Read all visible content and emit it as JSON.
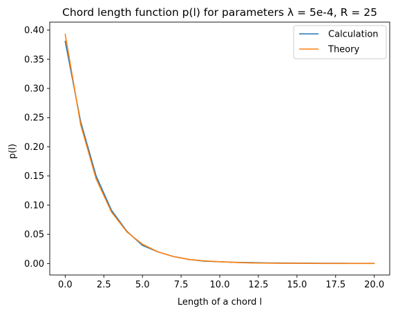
{
  "chart_data": {
    "type": "line",
    "title": "Chord length function p(l) for parameters λ = 5e-4, R = 25",
    "xlabel": "Length of a chord l",
    "ylabel": "p(l)",
    "xlim": [
      -1.0,
      21.0
    ],
    "ylim": [
      -0.0197,
      0.4137
    ],
    "xticks": [
      0.0,
      2.5,
      5.0,
      7.5,
      10.0,
      12.5,
      15.0,
      17.5,
      20.0
    ],
    "xtick_labels": [
      "0.0",
      "2.5",
      "5.0",
      "7.5",
      "10.0",
      "12.5",
      "15.0",
      "17.5",
      "20.0"
    ],
    "yticks": [
      0.0,
      0.05,
      0.1,
      0.15,
      0.2,
      0.25,
      0.3,
      0.35,
      0.4
    ],
    "ytick_labels": [
      "0.00",
      "0.05",
      "0.10",
      "0.15",
      "0.20",
      "0.25",
      "0.30",
      "0.35",
      "0.40"
    ],
    "grid": false,
    "legend_position": "top-right",
    "x": [
      0,
      1,
      2,
      3,
      4,
      5,
      6,
      7,
      8,
      9,
      10,
      11,
      12,
      13,
      14,
      15,
      16,
      17,
      18,
      19,
      20
    ],
    "series": [
      {
        "name": "Calculation",
        "color": "#1f77b4",
        "values": [
          0.381,
          0.243,
          0.15,
          0.091,
          0.055,
          0.031,
          0.02,
          0.012,
          0.007,
          0.004,
          0.003,
          0.002,
          0.0015,
          0.001,
          0.0008,
          0.0006,
          0.0005,
          0.0004,
          0.0003,
          0.0002,
          0.0002
        ]
      },
      {
        "name": "Theory",
        "color": "#ff7f0e",
        "values": [
          0.393,
          0.238,
          0.145,
          0.088,
          0.054,
          0.033,
          0.02,
          0.012,
          0.007,
          0.0045,
          0.003,
          0.0018,
          0.001,
          0.0007,
          0.0004,
          0.0003,
          0.0002,
          0.0001,
          0.0001,
          0.0001,
          0.0
        ]
      }
    ]
  }
}
